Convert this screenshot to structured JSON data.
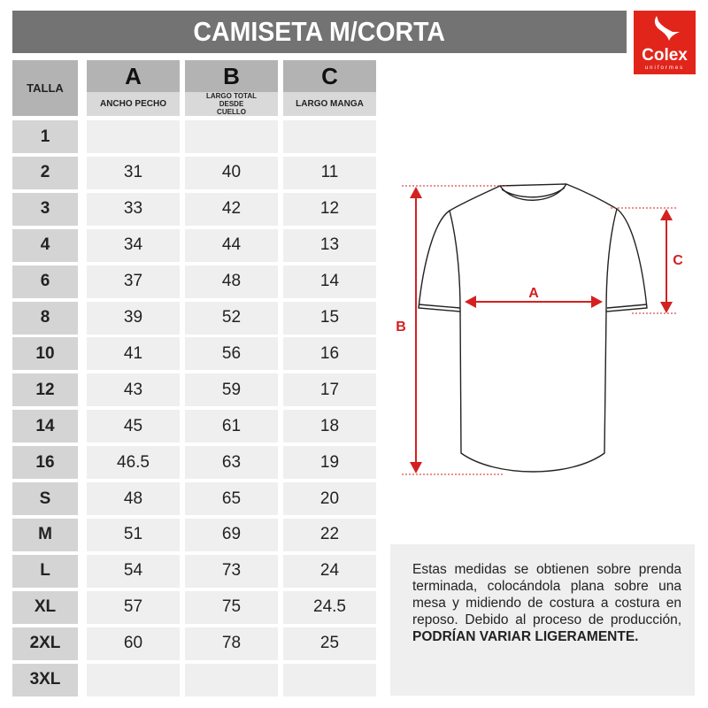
{
  "title": "CAMISETA M/CORTA",
  "logo": {
    "brand": "Colex",
    "sub": "uniformes",
    "color": "#e1251b"
  },
  "table": {
    "talla_header": "TALLA",
    "columns": [
      {
        "letter": "A",
        "label": "ANCHO PECHO"
      },
      {
        "letter": "B",
        "label": "LARGO TOTAL DESDE CUELLO"
      },
      {
        "letter": "C",
        "label": "LARGO MANGA"
      }
    ],
    "rows": [
      {
        "talla": "1",
        "a": "",
        "b": "",
        "c": ""
      },
      {
        "talla": "2",
        "a": "31",
        "b": "40",
        "c": "11"
      },
      {
        "talla": "3",
        "a": "33",
        "b": "42",
        "c": "12"
      },
      {
        "talla": "4",
        "a": "34",
        "b": "44",
        "c": "13"
      },
      {
        "talla": "6",
        "a": "37",
        "b": "48",
        "c": "14"
      },
      {
        "talla": "8",
        "a": "39",
        "b": "52",
        "c": "15"
      },
      {
        "talla": "10",
        "a": "41",
        "b": "56",
        "c": "16"
      },
      {
        "talla": "12",
        "a": "43",
        "b": "59",
        "c": "17"
      },
      {
        "talla": "14",
        "a": "45",
        "b": "61",
        "c": "18"
      },
      {
        "talla": "16",
        "a": "46.5",
        "b": "63",
        "c": "19"
      },
      {
        "talla": "S",
        "a": "48",
        "b": "65",
        "c": "20"
      },
      {
        "talla": "M",
        "a": "51",
        "b": "69",
        "c": "22"
      },
      {
        "talla": "L",
        "a": "54",
        "b": "73",
        "c": "24"
      },
      {
        "talla": "XL",
        "a": "57",
        "b": "75",
        "c": "24.5"
      },
      {
        "talla": "2XL",
        "a": "60",
        "b": "78",
        "c": "25"
      },
      {
        "talla": "3XL",
        "a": "",
        "b": "",
        "c": ""
      }
    ]
  },
  "diagram": {
    "label_a": "A",
    "label_b": "B",
    "label_c": "C",
    "accent": "#d42020"
  },
  "note": {
    "text": "Estas medidas se obtienen sobre prenda terminada, colocándola plana sobre una mesa y midiendo de costura a costura en reposo. Debido al proceso de producción,",
    "bold": "PODRÍAN VARIAR LIGERAMENTE."
  }
}
